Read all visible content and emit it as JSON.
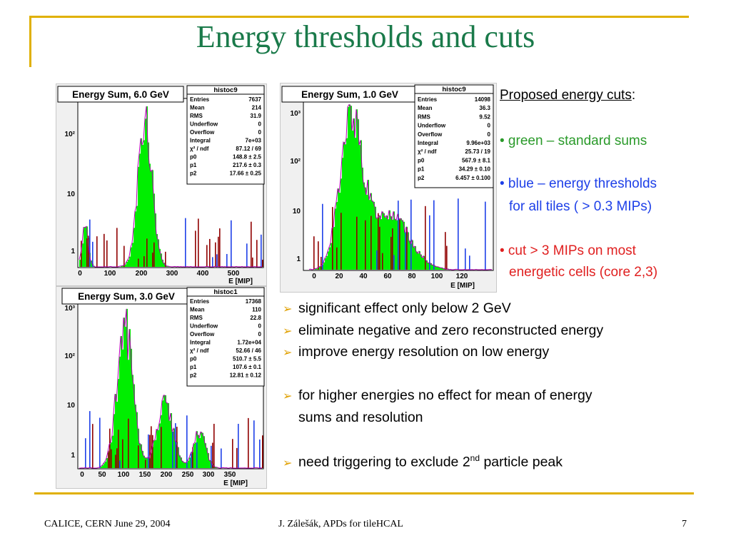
{
  "title": "Energy thresholds and cuts",
  "colors": {
    "accent": "#e0b000",
    "title": "#1a7a4a",
    "green": "#00ee00",
    "blue": "#1e40e8",
    "red": "#e02020",
    "darkred": "#900000",
    "magenta": "#b000b0"
  },
  "plots": [
    {
      "label": "Energy Sum, 6.0 GeV",
      "stats_title": "histoc9",
      "stats": [
        {
          "k": "Entries",
          "v": "7637"
        },
        {
          "k": "Mean",
          "v": "214"
        },
        {
          "k": "RMS",
          "v": "31.9"
        },
        {
          "k": "Underflow",
          "v": "0"
        },
        {
          "k": "Overflow",
          "v": "0"
        },
        {
          "k": "Integral",
          "v": "7e+03"
        },
        {
          "k": "χ² / ndf",
          "v": "87.12 / 69"
        },
        {
          "k": "p0",
          "v": "148.8 ± 2.5"
        },
        {
          "k": "p1",
          "v": "217.6 ± 0.3"
        },
        {
          "k": "p2",
          "v": "17.66 ± 0.25"
        }
      ],
      "yticks": [
        "10²",
        "10",
        "1"
      ],
      "xticks": [
        "0",
        "100",
        "200",
        "300",
        "400",
        "500"
      ],
      "xlabel": "E [MIP]"
    },
    {
      "label": "Energy Sum, 1.0 GeV",
      "stats_title": "histoc9",
      "stats": [
        {
          "k": "Entries",
          "v": "14098"
        },
        {
          "k": "Mean",
          "v": "36.3"
        },
        {
          "k": "RMS",
          "v": "9.52"
        },
        {
          "k": "Underflow",
          "v": "0"
        },
        {
          "k": "Overflow",
          "v": "0"
        },
        {
          "k": "Integral",
          "v": "9.96e+03"
        },
        {
          "k": "χ² / ndf",
          "v": "25.73 / 19"
        },
        {
          "k": "p0",
          "v": "567.9 ± 8.1"
        },
        {
          "k": "p1",
          "v": "34.29 ± 0.10"
        },
        {
          "k": "p2",
          "v": "6.457 ± 0.100"
        }
      ],
      "yticks": [
        "10³",
        "10²",
        "10",
        "1"
      ],
      "xticks": [
        "0",
        "20",
        "40",
        "60",
        "80",
        "100",
        "120"
      ],
      "xlabel": "E [MIP]"
    },
    {
      "label": "Energy Sum, 3.0 GeV",
      "stats_title": "histoc1",
      "stats": [
        {
          "k": "Entries",
          "v": "17368"
        },
        {
          "k": "Mean",
          "v": "110"
        },
        {
          "k": "RMS",
          "v": "22.8"
        },
        {
          "k": "Underflow",
          "v": "0"
        },
        {
          "k": "Overflow",
          "v": "0"
        },
        {
          "k": "Integral",
          "v": "1.72e+04"
        },
        {
          "k": "χ² / ndf",
          "v": "52.66 / 46"
        },
        {
          "k": "p0",
          "v": "510.7 ± 5.5"
        },
        {
          "k": "p1",
          "v": "107.6 ± 0.1"
        },
        {
          "k": "p2",
          "v": "12.81 ± 0.12"
        }
      ],
      "yticks": [
        "10³",
        "10²",
        "10",
        "1"
      ],
      "xticks": [
        "0",
        "50",
        "100",
        "150",
        "200",
        "250",
        "300",
        "350"
      ],
      "xlabel": "E [MIP]"
    }
  ],
  "proposed": {
    "heading": "Proposed energy cuts",
    "colon": ":",
    "green": "• green – standard sums",
    "blue1": "• blue – energy thresholds",
    "blue2": "for all tiles ( > 0.3 MIPs)",
    "red1": "• cut  > 3 MIPs on most",
    "red2": "energetic cells (core 2,3)"
  },
  "bullets": {
    "b1": "significant effect only below 2 GeV",
    "b2": "eliminate negative and zero reconstructed energy",
    "b3": "improve energy resolution on low energy",
    "b4a": "for higher energies no effect for mean of energy",
    "b4b": "sums and resolution",
    "b5": "need triggering to exclude 2",
    "b5sup": "nd",
    "b5end": " particle peak"
  },
  "footer": {
    "left": "CALICE, CERN June 29, 2004",
    "center": "J. Zálešák, APDs for tileHCAL",
    "page": "7"
  }
}
